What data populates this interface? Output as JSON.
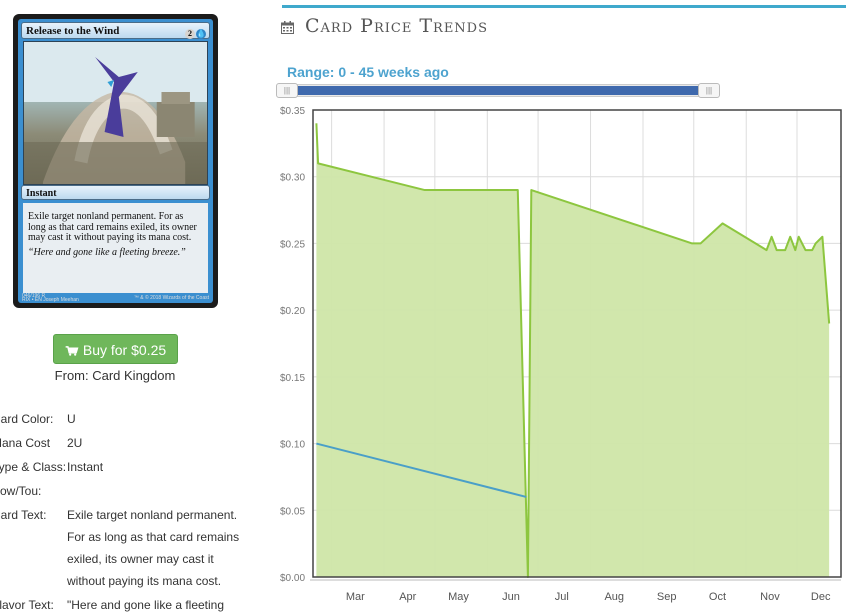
{
  "card": {
    "name": "Release to the Wind",
    "mana": [
      "2",
      "U"
    ],
    "type": "Instant",
    "rules_text": "Exile target nonland permanent. For as long as that card remains exiled, its owner may cast it without paying its mana cost.",
    "flavor_text": "“Here and gone like a fleeting breeze.”",
    "footer_left": "046/196 R",
    "footer_set": "RIX • EN",
    "artist": "Joseph Meehan",
    "copyright": "™ & © 2018 Wizards of the Coast"
  },
  "buy": {
    "label": "Buy for $0.25",
    "from": "From: Card Kingdom",
    "color": "#6fb75b"
  },
  "details": [
    {
      "label": "Card Color:",
      "value": "U"
    },
    {
      "label": "Mana Cost",
      "value": "2U"
    },
    {
      "label": "Type & Class:",
      "value": "Instant"
    },
    {
      "label": "Pow/Tou:",
      "value": ""
    },
    {
      "label": "Card Text:",
      "value": "Exile target nonland permanent. For as long as that card remains exiled, its owner may cast it without paying its mana cost."
    },
    {
      "label": "Flavor Text:",
      "value": "\"Here and gone like a fleeting"
    }
  ],
  "section": {
    "title": "Card Price Trends",
    "icon": "calendar-icon",
    "range_label": "Range: 0 - 45 weeks ago",
    "accent": "#3fa9cc"
  },
  "slider": {
    "min_weeks_ago": 0,
    "max_weeks_ago": 45
  },
  "chart_data": {
    "type": "area",
    "y_ticks": [
      "$0.35",
      "$0.30",
      "$0.25",
      "$0.20",
      "$0.15",
      "$0.10",
      "$0.05",
      "$0.00"
    ],
    "x_ticks": [
      "Mar",
      "Apr",
      "May",
      "Jun",
      "Jul",
      "Aug",
      "Sep",
      "Oct",
      "Nov",
      "Dec"
    ],
    "ylim": [
      0,
      0.35
    ],
    "grid": true,
    "series": [
      {
        "color": "#8dc63f",
        "fill": "#cfe6a8",
        "points": [
          [
            "2018-02-20",
            0.34
          ],
          [
            "2018-02-21",
            0.31
          ],
          [
            "2018-04-25",
            0.29
          ],
          [
            "2018-06-19",
            0.29
          ],
          [
            "2018-06-25",
            0.0
          ],
          [
            "2018-06-27",
            0.29
          ],
          [
            "2018-09-30",
            0.25
          ],
          [
            "2018-10-05",
            0.25
          ],
          [
            "2018-10-18",
            0.265
          ],
          [
            "2018-11-13",
            0.245
          ],
          [
            "2018-11-16",
            0.255
          ],
          [
            "2018-11-19",
            0.245
          ],
          [
            "2018-11-24",
            0.245
          ],
          [
            "2018-11-27",
            0.255
          ],
          [
            "2018-11-30",
            0.245
          ],
          [
            "2018-12-02",
            0.255
          ],
          [
            "2018-12-06",
            0.245
          ],
          [
            "2018-12-10",
            0.245
          ],
          [
            "2018-12-12",
            0.25
          ],
          [
            "2018-12-16",
            0.255
          ],
          [
            "2018-12-20",
            0.19
          ]
        ]
      },
      {
        "color": "#4a9fc8",
        "points": [
          [
            "2018-02-20",
            0.1
          ],
          [
            "2018-06-24",
            0.06
          ]
        ]
      }
    ]
  }
}
